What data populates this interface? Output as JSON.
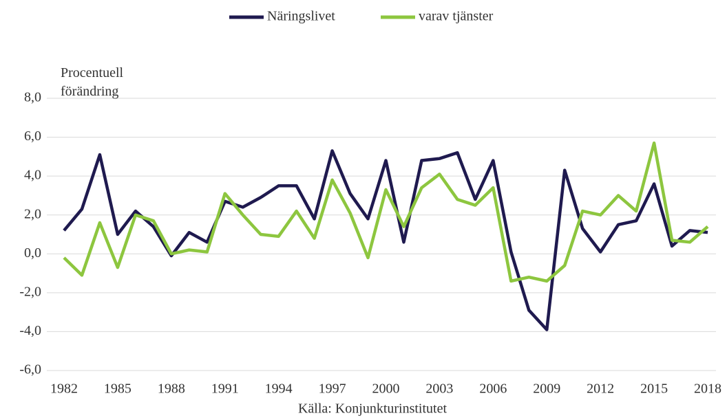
{
  "chart_data": {
    "type": "line",
    "y_label": "Procentuell förändring",
    "source": "Källa: Konjunkturinstitutet",
    "x": [
      1982,
      1983,
      1984,
      1985,
      1986,
      1987,
      1988,
      1989,
      1990,
      1991,
      1992,
      1993,
      1994,
      1995,
      1996,
      1997,
      1998,
      1999,
      2000,
      2001,
      2002,
      2003,
      2004,
      2005,
      2006,
      2007,
      2008,
      2009,
      2010,
      2011,
      2012,
      2013,
      2014,
      2015,
      2016,
      2017,
      2018
    ],
    "xlim": [
      1982,
      2018
    ],
    "xticks": [
      1982,
      1985,
      1988,
      1991,
      1994,
      1997,
      2000,
      2003,
      2006,
      2009,
      2012,
      2015,
      2018
    ],
    "ylim": [
      -6,
      8
    ],
    "yticks": [
      {
        "value": -6,
        "label": "-6,0"
      },
      {
        "value": -4,
        "label": "-4,0"
      },
      {
        "value": -2,
        "label": "-2,0"
      },
      {
        "value": 0,
        "label": "0,0"
      },
      {
        "value": 2,
        "label": "2,0"
      },
      {
        "value": 4,
        "label": "4,0"
      },
      {
        "value": 6,
        "label": "6,0"
      },
      {
        "value": 8,
        "label": "8,0"
      }
    ],
    "grid": true,
    "legend": "top",
    "series": [
      {
        "name": "Näringslivet",
        "color": "#1f1a4f",
        "values": [
          1.2,
          2.3,
          5.1,
          1.0,
          2.2,
          1.4,
          -0.1,
          1.1,
          0.6,
          2.7,
          2.4,
          2.9,
          3.5,
          3.5,
          1.8,
          5.3,
          3.1,
          1.8,
          4.8,
          0.6,
          4.8,
          4.9,
          5.2,
          2.8,
          4.8,
          0.1,
          -2.9,
          -3.9,
          4.3,
          1.3,
          0.1,
          1.5,
          1.7,
          3.6,
          0.4,
          1.2,
          1.1
        ]
      },
      {
        "name": "varav tjänster",
        "color": "#8dc63f",
        "values": [
          -0.2,
          -1.1,
          1.6,
          -0.7,
          2.0,
          1.7,
          0.0,
          0.2,
          0.1,
          3.1,
          2.0,
          1.0,
          0.9,
          2.2,
          0.8,
          3.8,
          2.1,
          -0.2,
          3.3,
          1.4,
          3.4,
          4.1,
          2.8,
          2.5,
          3.4,
          -1.4,
          -1.2,
          -1.4,
          -0.6,
          2.2,
          2.0,
          3.0,
          2.2,
          5.7,
          0.7,
          0.6,
          1.4
        ]
      }
    ]
  }
}
